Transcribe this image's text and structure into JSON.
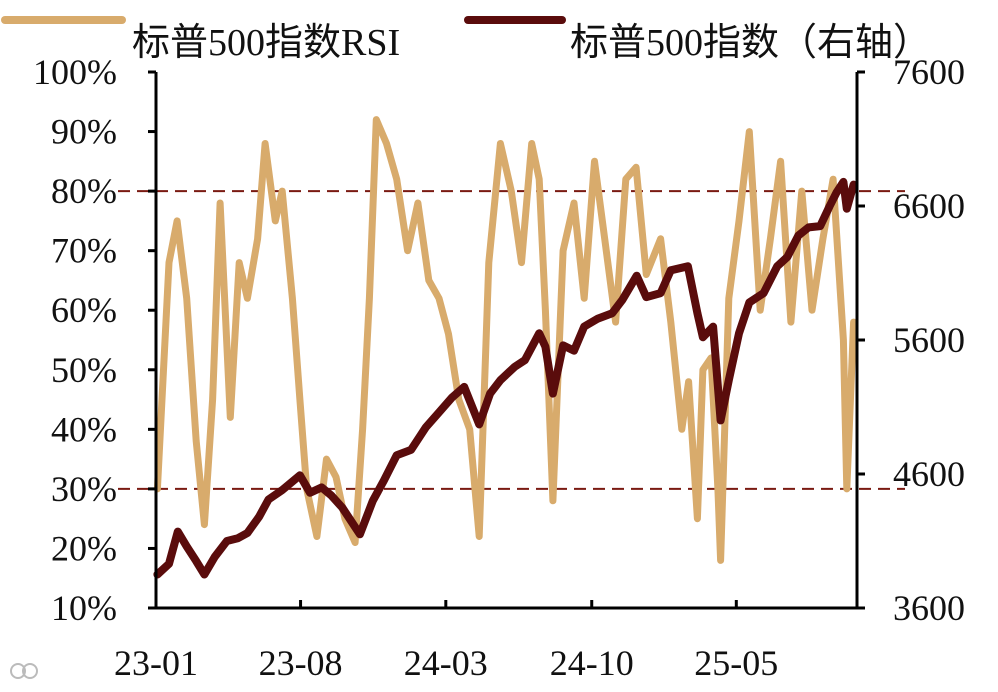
{
  "chart_data": {
    "type": "line",
    "title": "",
    "x_tick_labels": [
      "23-01",
      "23-08",
      "24-03",
      "24-10",
      "25-05"
    ],
    "x_range": [
      "2023-01",
      "2025-10"
    ],
    "y_left": {
      "range": [
        10,
        100
      ],
      "ticks": [
        10,
        20,
        30,
        40,
        50,
        60,
        70,
        80,
        90,
        100
      ],
      "tick_labels": [
        "10%",
        "20%",
        "30%",
        "40%",
        "50%",
        "60%",
        "70%",
        "80%",
        "90%",
        "100%"
      ]
    },
    "y_right": {
      "range": [
        3600,
        7600
      ],
      "ticks": [
        3600,
        4600,
        5600,
        6600,
        7600
      ],
      "tick_labels": [
        "3600",
        "4600",
        "5600",
        "6600",
        "7600"
      ]
    },
    "reference_lines_left_axis": [
      80,
      30
    ],
    "legend_position": "top",
    "grid": false,
    "series": [
      {
        "name": "标普500指数RSI",
        "axis": "left",
        "color": "#d8ab6c",
        "x": [
          "2023-01-03",
          "2023-01-20",
          "2023-02-01",
          "2023-02-15",
          "2023-03-01",
          "2023-03-13",
          "2023-03-25",
          "2023-04-05",
          "2023-04-20",
          "2023-05-03",
          "2023-05-15",
          "2023-05-30",
          "2023-06-10",
          "2023-06-25",
          "2023-07-05",
          "2023-07-20",
          "2023-07-31",
          "2023-08-10",
          "2023-08-25",
          "2023-09-08",
          "2023-09-22",
          "2023-10-05",
          "2023-10-20",
          "2023-10-31",
          "2023-11-10",
          "2023-11-20",
          "2023-12-05",
          "2023-12-20",
          "2024-01-05",
          "2024-01-20",
          "2024-02-05",
          "2024-02-20",
          "2024-03-05",
          "2024-03-20",
          "2024-04-05",
          "2024-04-19",
          "2024-05-03",
          "2024-05-20",
          "2024-06-05",
          "2024-06-20",
          "2024-07-05",
          "2024-07-16",
          "2024-07-25",
          "2024-08-05",
          "2024-08-20",
          "2024-09-05",
          "2024-09-20",
          "2024-10-05",
          "2024-10-20",
          "2024-11-05",
          "2024-11-20",
          "2024-12-05",
          "2024-12-20",
          "2025-01-10",
          "2025-01-25",
          "2025-02-10",
          "2025-02-20",
          "2025-03-05",
          "2025-03-13",
          "2025-03-25",
          "2025-04-04",
          "2025-04-08",
          "2025-04-20",
          "2025-05-05",
          "2025-05-20",
          "2025-06-05",
          "2025-06-20",
          "2025-07-05",
          "2025-07-20",
          "2025-08-05",
          "2025-08-20",
          "2025-09-05",
          "2025-09-20",
          "2025-10-05",
          "2025-10-10",
          "2025-10-20"
        ],
        "values": [
          30,
          68,
          75,
          62,
          38,
          24,
          45,
          78,
          42,
          68,
          62,
          72,
          88,
          75,
          80,
          62,
          45,
          30,
          22,
          35,
          32,
          25,
          21,
          40,
          62,
          92,
          88,
          82,
          70,
          78,
          65,
          62,
          56,
          45,
          40,
          22,
          68,
          88,
          80,
          68,
          88,
          82,
          60,
          28,
          70,
          78,
          62,
          85,
          72,
          58,
          82,
          84,
          66,
          72,
          58,
          40,
          48,
          25,
          50,
          52,
          30,
          18,
          62,
          75,
          90,
          60,
          72,
          85,
          58,
          80,
          60,
          72,
          82,
          55,
          30,
          58
        ]
      },
      {
        "name": "标普500指数（右轴）",
        "axis": "right",
        "color": "#5a0c0c",
        "x": [
          "2023-01-03",
          "2023-01-20",
          "2023-02-02",
          "2023-02-15",
          "2023-03-01",
          "2023-03-13",
          "2023-03-28",
          "2023-04-15",
          "2023-05-01",
          "2023-05-15",
          "2023-06-01",
          "2023-06-15",
          "2023-07-05",
          "2023-07-31",
          "2023-08-15",
          "2023-09-01",
          "2023-09-15",
          "2023-10-01",
          "2023-10-27",
          "2023-11-15",
          "2023-12-01",
          "2023-12-20",
          "2024-01-10",
          "2024-02-01",
          "2024-02-20",
          "2024-03-10",
          "2024-03-28",
          "2024-04-19",
          "2024-05-05",
          "2024-05-20",
          "2024-06-10",
          "2024-06-25",
          "2024-07-16",
          "2024-07-25",
          "2024-08-05",
          "2024-08-20",
          "2024-09-05",
          "2024-09-20",
          "2024-10-10",
          "2024-10-31",
          "2024-11-15",
          "2024-12-06",
          "2024-12-20",
          "2025-01-10",
          "2025-01-25",
          "2025-02-19",
          "2025-03-05",
          "2025-03-13",
          "2025-03-28",
          "2025-04-08",
          "2025-04-20",
          "2025-05-05",
          "2025-05-20",
          "2025-06-10",
          "2025-06-30",
          "2025-07-15",
          "2025-07-31",
          "2025-08-15",
          "2025-09-01",
          "2025-09-15",
          "2025-09-25",
          "2025-10-05",
          "2025-10-10",
          "2025-10-20"
        ],
        "values": [
          3850,
          3930,
          4170,
          4060,
          3950,
          3850,
          3980,
          4100,
          4120,
          4160,
          4280,
          4410,
          4480,
          4590,
          4460,
          4500,
          4440,
          4350,
          4150,
          4400,
          4550,
          4740,
          4780,
          4950,
          5060,
          5170,
          5250,
          4970,
          5200,
          5300,
          5400,
          5450,
          5650,
          5550,
          5200,
          5560,
          5520,
          5700,
          5760,
          5800,
          5900,
          6080,
          5920,
          5950,
          6120,
          6150,
          5800,
          5620,
          5700,
          5000,
          5300,
          5650,
          5880,
          5950,
          6150,
          6220,
          6380,
          6440,
          6450,
          6600,
          6700,
          6780,
          6580,
          6760
        ]
      }
    ]
  }
}
